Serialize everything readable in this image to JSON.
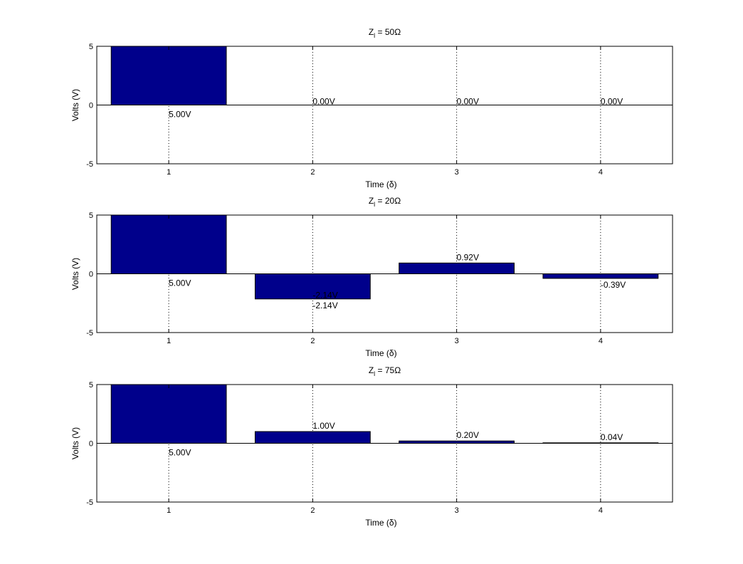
{
  "colors": {
    "bar_fill": "#00008B",
    "axis": "#000000",
    "background": "#ffffff"
  },
  "chart_data": [
    {
      "type": "bar",
      "title_prefix": "Z",
      "title_sub": "l",
      "title_suffix": " = 50Ω",
      "xlabel": "Time (δ)",
      "ylabel": "Volts (V)",
      "categories": [
        1,
        2,
        3,
        4
      ],
      "values": [
        5.0,
        0.0,
        0.0,
        0.0
      ],
      "data_labels": [
        "5.00V",
        "0.00V",
        "0.00V",
        "0.00V"
      ],
      "xlim": [
        0.5,
        4.5
      ],
      "ylim": [
        -5,
        5
      ],
      "yticks": [
        -5,
        0,
        5
      ],
      "xticks": [
        1,
        2,
        3,
        4
      ],
      "xgrid": "dotted"
    },
    {
      "type": "bar",
      "title_prefix": "Z",
      "title_sub": "l",
      "title_suffix": " = 20Ω",
      "xlabel": "Time (δ)",
      "ylabel": "Volts (V)",
      "categories": [
        1,
        2,
        3,
        4
      ],
      "values": [
        5.0,
        -2.14,
        0.92,
        -0.39
      ],
      "data_labels": [
        "5.00V",
        "-2.14V",
        "0.92V",
        "-0.39V"
      ],
      "extra_labels": [
        {
          "category": 2,
          "text": "-2.14V"
        }
      ],
      "xlim": [
        0.5,
        4.5
      ],
      "ylim": [
        -5,
        5
      ],
      "yticks": [
        -5,
        0,
        5
      ],
      "xticks": [
        1,
        2,
        3,
        4
      ],
      "xgrid": "dotted"
    },
    {
      "type": "bar",
      "title_prefix": "Z",
      "title_sub": "l",
      "title_suffix": " = 75Ω",
      "xlabel": "Time (δ)",
      "ylabel": "Volts (V)",
      "categories": [
        1,
        2,
        3,
        4
      ],
      "values": [
        5.0,
        1.0,
        0.2,
        0.04
      ],
      "data_labels": [
        "5.00V",
        "1.00V",
        "0.20V",
        "0.04V"
      ],
      "xlim": [
        0.5,
        4.5
      ],
      "ylim": [
        -5,
        5
      ],
      "yticks": [
        -5,
        0,
        5
      ],
      "xticks": [
        1,
        2,
        3,
        4
      ],
      "xgrid": "dotted"
    }
  ]
}
